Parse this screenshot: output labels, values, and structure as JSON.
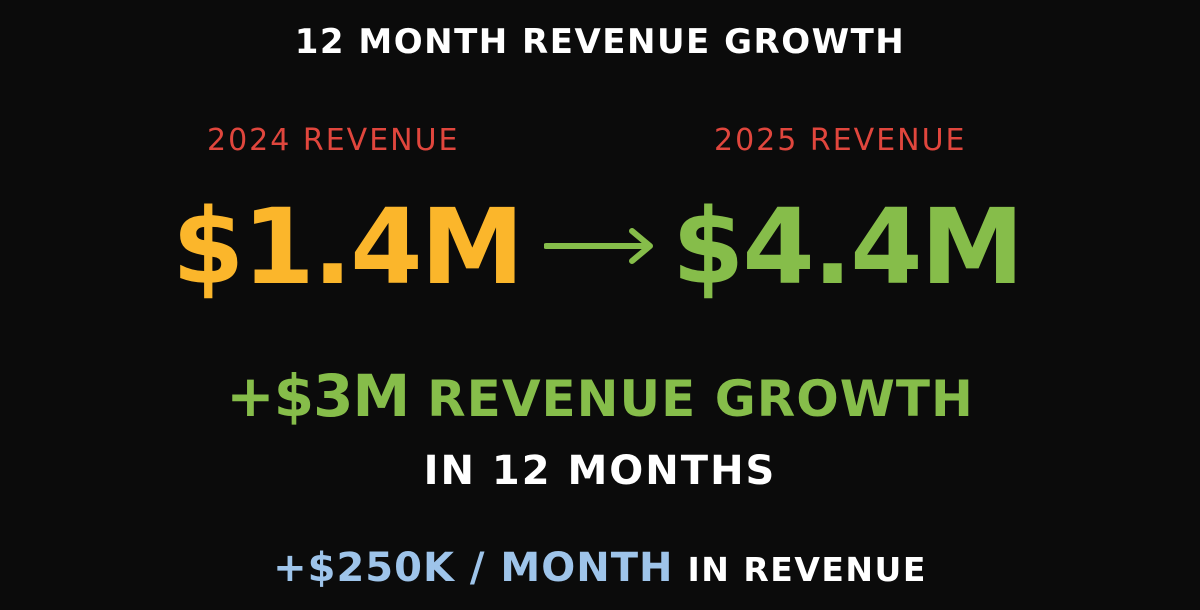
{
  "headline": "12 MONTH REVENUE GROWTH",
  "before": {
    "label": "2024 REVENUE",
    "value": "$1.4M"
  },
  "after": {
    "label": "2025 REVENUE",
    "value": "$4.4M"
  },
  "growth": {
    "amount": "+$3M",
    "label": "REVENUE GROWTH",
    "subtext": "IN 12 MONTHS"
  },
  "monthly": {
    "amount": "+$250K / MONTH",
    "label": "IN REVENUE"
  },
  "icons": {
    "transition": "right-arrow-icon"
  },
  "colors": {
    "background": "#0b0b0b",
    "text": "#ffffff",
    "label_red": "#e0463d",
    "value_yellow": "#fbb62b",
    "value_green": "#86bd4a",
    "accent_blue": "#9ec4ea"
  }
}
